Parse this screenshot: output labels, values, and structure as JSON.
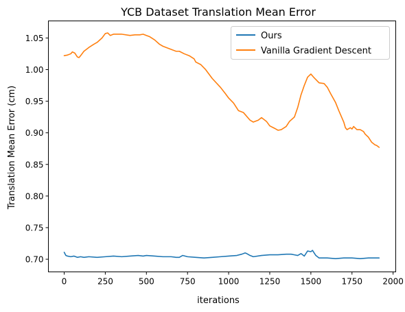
{
  "chart_data": {
    "type": "line",
    "title": "YCB Dataset Translation Mean Error",
    "xlabel": "iterations",
    "ylabel": "Translation Mean Error (cm)",
    "xlim": [
      -96,
      2016
    ],
    "ylim": [
      0.68,
      1.077
    ],
    "xticks": [
      0,
      250,
      500,
      750,
      1000,
      1250,
      1500,
      1750,
      2000
    ],
    "yticks": [
      0.7,
      0.75,
      0.8,
      0.85,
      0.9,
      0.95,
      1.0,
      1.05
    ],
    "xtick_labels": [
      "0",
      "250",
      "500",
      "750",
      "1000",
      "1250",
      "1500",
      "1750",
      "2000"
    ],
    "ytick_labels": [
      "0.70",
      "0.75",
      "0.80",
      "0.85",
      "0.90",
      "0.95",
      "1.00",
      "1.05"
    ],
    "grid": false,
    "legend_position": "top-right",
    "series": [
      {
        "name": "Ours",
        "color": "#1f77b4",
        "x": [
          0,
          10,
          20,
          40,
          60,
          80,
          100,
          120,
          150,
          200,
          250,
          300,
          350,
          400,
          450,
          480,
          500,
          550,
          600,
          650,
          680,
          700,
          720,
          750,
          800,
          850,
          900,
          950,
          1000,
          1050,
          1080,
          1100,
          1110,
          1130,
          1150,
          1200,
          1250,
          1300,
          1350,
          1380,
          1400,
          1420,
          1440,
          1460,
          1480,
          1500,
          1510,
          1530,
          1550,
          1600,
          1650,
          1700,
          1750,
          1800,
          1850,
          1900,
          1915
        ],
        "y": [
          0.711,
          0.706,
          0.705,
          0.704,
          0.705,
          0.703,
          0.704,
          0.703,
          0.704,
          0.703,
          0.704,
          0.705,
          0.704,
          0.705,
          0.706,
          0.705,
          0.706,
          0.705,
          0.704,
          0.704,
          0.703,
          0.703,
          0.706,
          0.704,
          0.703,
          0.702,
          0.703,
          0.704,
          0.705,
          0.706,
          0.708,
          0.71,
          0.709,
          0.706,
          0.704,
          0.706,
          0.707,
          0.707,
          0.708,
          0.708,
          0.707,
          0.706,
          0.709,
          0.705,
          0.713,
          0.712,
          0.714,
          0.706,
          0.702,
          0.702,
          0.701,
          0.702,
          0.702,
          0.701,
          0.702,
          0.702,
          0.702
        ]
      },
      {
        "name": "Vanilla Gradient Descent",
        "color": "#ff7f0e",
        "x": [
          0,
          20,
          40,
          50,
          65,
          80,
          90,
          100,
          120,
          150,
          180,
          200,
          230,
          250,
          265,
          280,
          300,
          350,
          400,
          430,
          460,
          480,
          500,
          520,
          550,
          580,
          600,
          620,
          650,
          680,
          700,
          730,
          760,
          790,
          800,
          830,
          860,
          900,
          950,
          980,
          1000,
          1030,
          1060,
          1090,
          1100,
          1130,
          1150,
          1180,
          1200,
          1230,
          1250,
          1280,
          1300,
          1320,
          1350,
          1370,
          1400,
          1420,
          1440,
          1460,
          1480,
          1500,
          1520,
          1550,
          1580,
          1600,
          1620,
          1650,
          1670,
          1700,
          1710,
          1720,
          1740,
          1750,
          1760,
          1780,
          1800,
          1820,
          1830,
          1850,
          1870,
          1890,
          1900,
          1915
        ],
        "y": [
          1.022,
          1.023,
          1.025,
          1.028,
          1.026,
          1.02,
          1.019,
          1.022,
          1.029,
          1.035,
          1.04,
          1.043,
          1.05,
          1.057,
          1.058,
          1.054,
          1.056,
          1.056,
          1.054,
          1.055,
          1.055,
          1.056,
          1.054,
          1.052,
          1.047,
          1.04,
          1.037,
          1.035,
          1.032,
          1.029,
          1.029,
          1.025,
          1.022,
          1.017,
          1.012,
          1.008,
          1.0,
          0.986,
          0.972,
          0.962,
          0.955,
          0.947,
          0.935,
          0.932,
          0.929,
          0.92,
          0.917,
          0.92,
          0.924,
          0.918,
          0.911,
          0.907,
          0.904,
          0.905,
          0.91,
          0.918,
          0.925,
          0.94,
          0.96,
          0.975,
          0.988,
          0.993,
          0.987,
          0.979,
          0.978,
          0.972,
          0.962,
          0.948,
          0.935,
          0.917,
          0.908,
          0.905,
          0.908,
          0.906,
          0.91,
          0.905,
          0.905,
          0.902,
          0.898,
          0.893,
          0.885,
          0.881,
          0.88,
          0.877
        ]
      }
    ]
  }
}
